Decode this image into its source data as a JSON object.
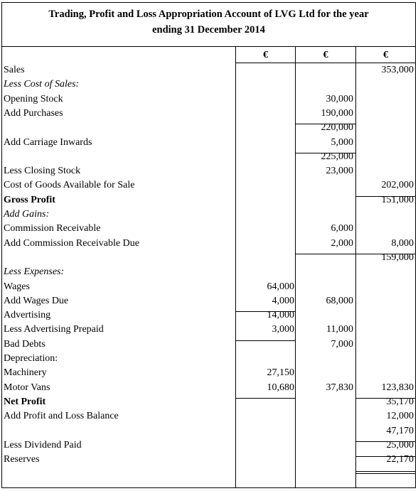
{
  "title": {
    "line1": "Trading, Profit and Loss Appropriation Account of LVG Ltd for the year",
    "line2": "ending 31 December 2014"
  },
  "currency_headers": [
    "€",
    "€",
    "€"
  ],
  "rows": [
    {
      "label": "Sales",
      "style": "",
      "c1": "",
      "c2": "",
      "c3": "353,000"
    },
    {
      "label": "Less Cost of Sales:",
      "style": "italic",
      "c1": "",
      "c2": "",
      "c3": ""
    },
    {
      "label": "Opening Stock",
      "style": "",
      "c1": "",
      "c2": "30,000",
      "c3": ""
    },
    {
      "label": "Add Purchases",
      "style": "",
      "c1": "",
      "c2": "190,000",
      "c3": ""
    },
    {
      "label": "",
      "style": "",
      "c1": "",
      "c2": "220,000",
      "c3": ""
    },
    {
      "label": "Add Carriage Inwards",
      "style": "",
      "c1": "",
      "c2": "5,000",
      "c3": ""
    },
    {
      "label": "",
      "style": "",
      "c1": "",
      "c2": "225,000",
      "c3": ""
    },
    {
      "label": "Less Closing Stock",
      "style": "",
      "c1": "",
      "c2": "23,000",
      "c3": ""
    },
    {
      "label": "Cost of Goods Available for Sale",
      "style": "",
      "c1": "",
      "c2": "",
      "c3": "202,000"
    },
    {
      "label": "Gross Profit",
      "style": "bold",
      "c1": "",
      "c2": "",
      "c3": "151,000"
    },
    {
      "label": "Add Gains:",
      "style": "italic",
      "c1": "",
      "c2": "",
      "c3": ""
    },
    {
      "label": "Commission Receivable",
      "style": "",
      "c1": "",
      "c2": "6,000",
      "c3": ""
    },
    {
      "label": "Add Commission Receivable Due",
      "style": "",
      "c1": "",
      "c2": "2,000",
      "c3": "8,000"
    },
    {
      "label": "",
      "style": "",
      "c1": "",
      "c2": "",
      "c3": "159,000"
    },
    {
      "label": "Less Expenses:",
      "style": "italic",
      "c1": "",
      "c2": "",
      "c3": ""
    },
    {
      "label": "Wages",
      "style": "",
      "c1": "64,000",
      "c2": "",
      "c3": ""
    },
    {
      "label": "Add Wages Due",
      "style": "",
      "c1": "4,000",
      "c2": "68,000",
      "c3": ""
    },
    {
      "label": "Advertising",
      "style": "",
      "c1": "14,000",
      "c2": "",
      "c3": ""
    },
    {
      "label": "Less Advertising Prepaid",
      "style": "",
      "c1": "3,000",
      "c2": "11,000",
      "c3": ""
    },
    {
      "label": "Bad Debts",
      "style": "",
      "c1": "",
      "c2": "7,000",
      "c3": ""
    },
    {
      "label": "Depreciation:",
      "style": "",
      "c1": "",
      "c2": "",
      "c3": ""
    },
    {
      "label": "Machinery",
      "style": "",
      "c1": "27,150",
      "c2": "",
      "c3": ""
    },
    {
      "label": "Motor Vans",
      "style": "",
      "c1": "10,680",
      "c2": "37,830",
      "c3": "123,830"
    },
    {
      "label": "Net Profit",
      "style": "bold",
      "c1": "",
      "c2": "",
      "c3": "35,170"
    },
    {
      "label": "Add Profit and Loss Balance",
      "style": "",
      "c1": "",
      "c2": "",
      "c3": "12,000"
    },
    {
      "label": "",
      "style": "",
      "c1": "",
      "c2": "",
      "c3": "47,170"
    },
    {
      "label": "Less Dividend Paid",
      "style": "",
      "c1": "",
      "c2": "",
      "c3": "25,000"
    },
    {
      "label": "Reserves",
      "style": "",
      "c1": "",
      "c2": "",
      "c3": "22,170"
    }
  ]
}
